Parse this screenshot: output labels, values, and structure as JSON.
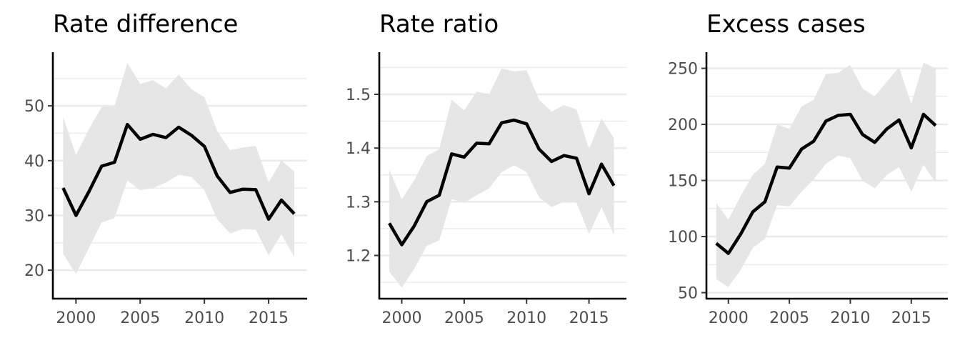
{
  "chart_data": [
    {
      "type": "line",
      "title": "Rate difference",
      "x": [
        1999,
        2000,
        2001,
        2002,
        2003,
        2004,
        2005,
        2006,
        2007,
        2008,
        2009,
        2010,
        2011,
        2012,
        2013,
        2014,
        2015,
        2016,
        2017
      ],
      "series": [
        {
          "values": [
            35.0,
            30.0,
            34.3,
            39.0,
            39.7,
            46.6,
            43.9,
            44.8,
            44.2,
            46.1,
            44.6,
            42.6,
            37.2,
            34.2,
            34.8,
            34.7,
            29.3,
            32.8,
            30.3
          ],
          "lower": [
            23.0,
            19.3,
            24.0,
            28.7,
            29.5,
            36.4,
            34.6,
            35.0,
            36.0,
            37.4,
            37.0,
            34.6,
            29.3,
            26.7,
            27.5,
            27.4,
            22.7,
            26.6,
            22.4
          ],
          "upper": [
            48.0,
            41.0,
            45.7,
            49.8,
            50.0,
            57.8,
            54.0,
            54.7,
            53.2,
            55.7,
            53.0,
            51.6,
            45.4,
            41.9,
            42.4,
            42.7,
            36.0,
            40.0,
            38.0
          ]
        }
      ],
      "yticks": [
        20,
        30,
        40,
        50
      ],
      "xticks": [
        2000,
        2005,
        2010,
        2015
      ],
      "xlim": [
        1998.2,
        2018.0
      ],
      "ylim": [
        14.8,
        59.8
      ],
      "xlabel": "",
      "ylabel": "",
      "grid": true,
      "legend": "none",
      "colors": {
        "line": "#000000",
        "band": "#e6e6e6",
        "grid": "#ebebeb",
        "tick_text": "#4d4d4d"
      }
    },
    {
      "type": "line",
      "title": "Rate ratio",
      "x": [
        1999,
        2000,
        2001,
        2002,
        2003,
        2004,
        2005,
        2006,
        2007,
        2008,
        2009,
        2010,
        2011,
        2012,
        2013,
        2014,
        2015,
        2016,
        2017
      ],
      "series": [
        {
          "values": [
            1.26,
            1.22,
            1.255,
            1.3,
            1.312,
            1.389,
            1.383,
            1.409,
            1.408,
            1.447,
            1.452,
            1.445,
            1.398,
            1.375,
            1.386,
            1.381,
            1.315,
            1.37,
            1.33
          ],
          "lower": [
            1.17,
            1.14,
            1.175,
            1.218,
            1.228,
            1.305,
            1.298,
            1.312,
            1.325,
            1.355,
            1.368,
            1.355,
            1.308,
            1.29,
            1.3,
            1.298,
            1.24,
            1.29,
            1.238
          ],
          "upper": [
            1.36,
            1.305,
            1.34,
            1.385,
            1.398,
            1.49,
            1.47,
            1.505,
            1.5,
            1.548,
            1.543,
            1.545,
            1.49,
            1.468,
            1.48,
            1.472,
            1.398,
            1.455,
            1.418
          ]
        }
      ],
      "yticks": [
        1.2,
        1.3,
        1.4,
        1.5
      ],
      "xticks": [
        2000,
        2005,
        2010,
        2015
      ],
      "xlim": [
        1998.2,
        2018.0
      ],
      "ylim": [
        1.1195,
        1.5785
      ],
      "xlabel": "",
      "ylabel": "",
      "grid": true,
      "legend": "none",
      "colors": {
        "line": "#000000",
        "band": "#e6e6e6",
        "grid": "#ebebeb",
        "tick_text": "#4d4d4d"
      }
    },
    {
      "type": "line",
      "title": "Excess cases",
      "x": [
        1999,
        2000,
        2001,
        2002,
        2003,
        2004,
        2005,
        2006,
        2007,
        2008,
        2009,
        2010,
        2011,
        2012,
        2013,
        2014,
        2015,
        2016,
        2017
      ],
      "series": [
        {
          "values": [
            94,
            85,
            102,
            122,
            131,
            162,
            161,
            178,
            185,
            203,
            208,
            209,
            191,
            184,
            196,
            204,
            179,
            209,
            199
          ],
          "lower": [
            62,
            55,
            70,
            90,
            98,
            128,
            127,
            140,
            151,
            165,
            172,
            170,
            150,
            143,
            155,
            162,
            140,
            164,
            148
          ],
          "upper": [
            130,
            115,
            136,
            155,
            165,
            200,
            196,
            216,
            222,
            245,
            246,
            253,
            232,
            225,
            238,
            251,
            218,
            255,
            250
          ]
        }
      ],
      "yticks": [
        50,
        100,
        150,
        200,
        250
      ],
      "xticks": [
        2000,
        2005,
        2010,
        2015
      ],
      "xlim": [
        1998.2,
        2018.0
      ],
      "ylim": [
        44.6,
        264.4
      ],
      "xlabel": "",
      "ylabel": "",
      "grid": true,
      "legend": "none",
      "colors": {
        "line": "#000000",
        "band": "#e6e6e6",
        "grid": "#ebebeb",
        "tick_text": "#4d4d4d"
      }
    }
  ]
}
